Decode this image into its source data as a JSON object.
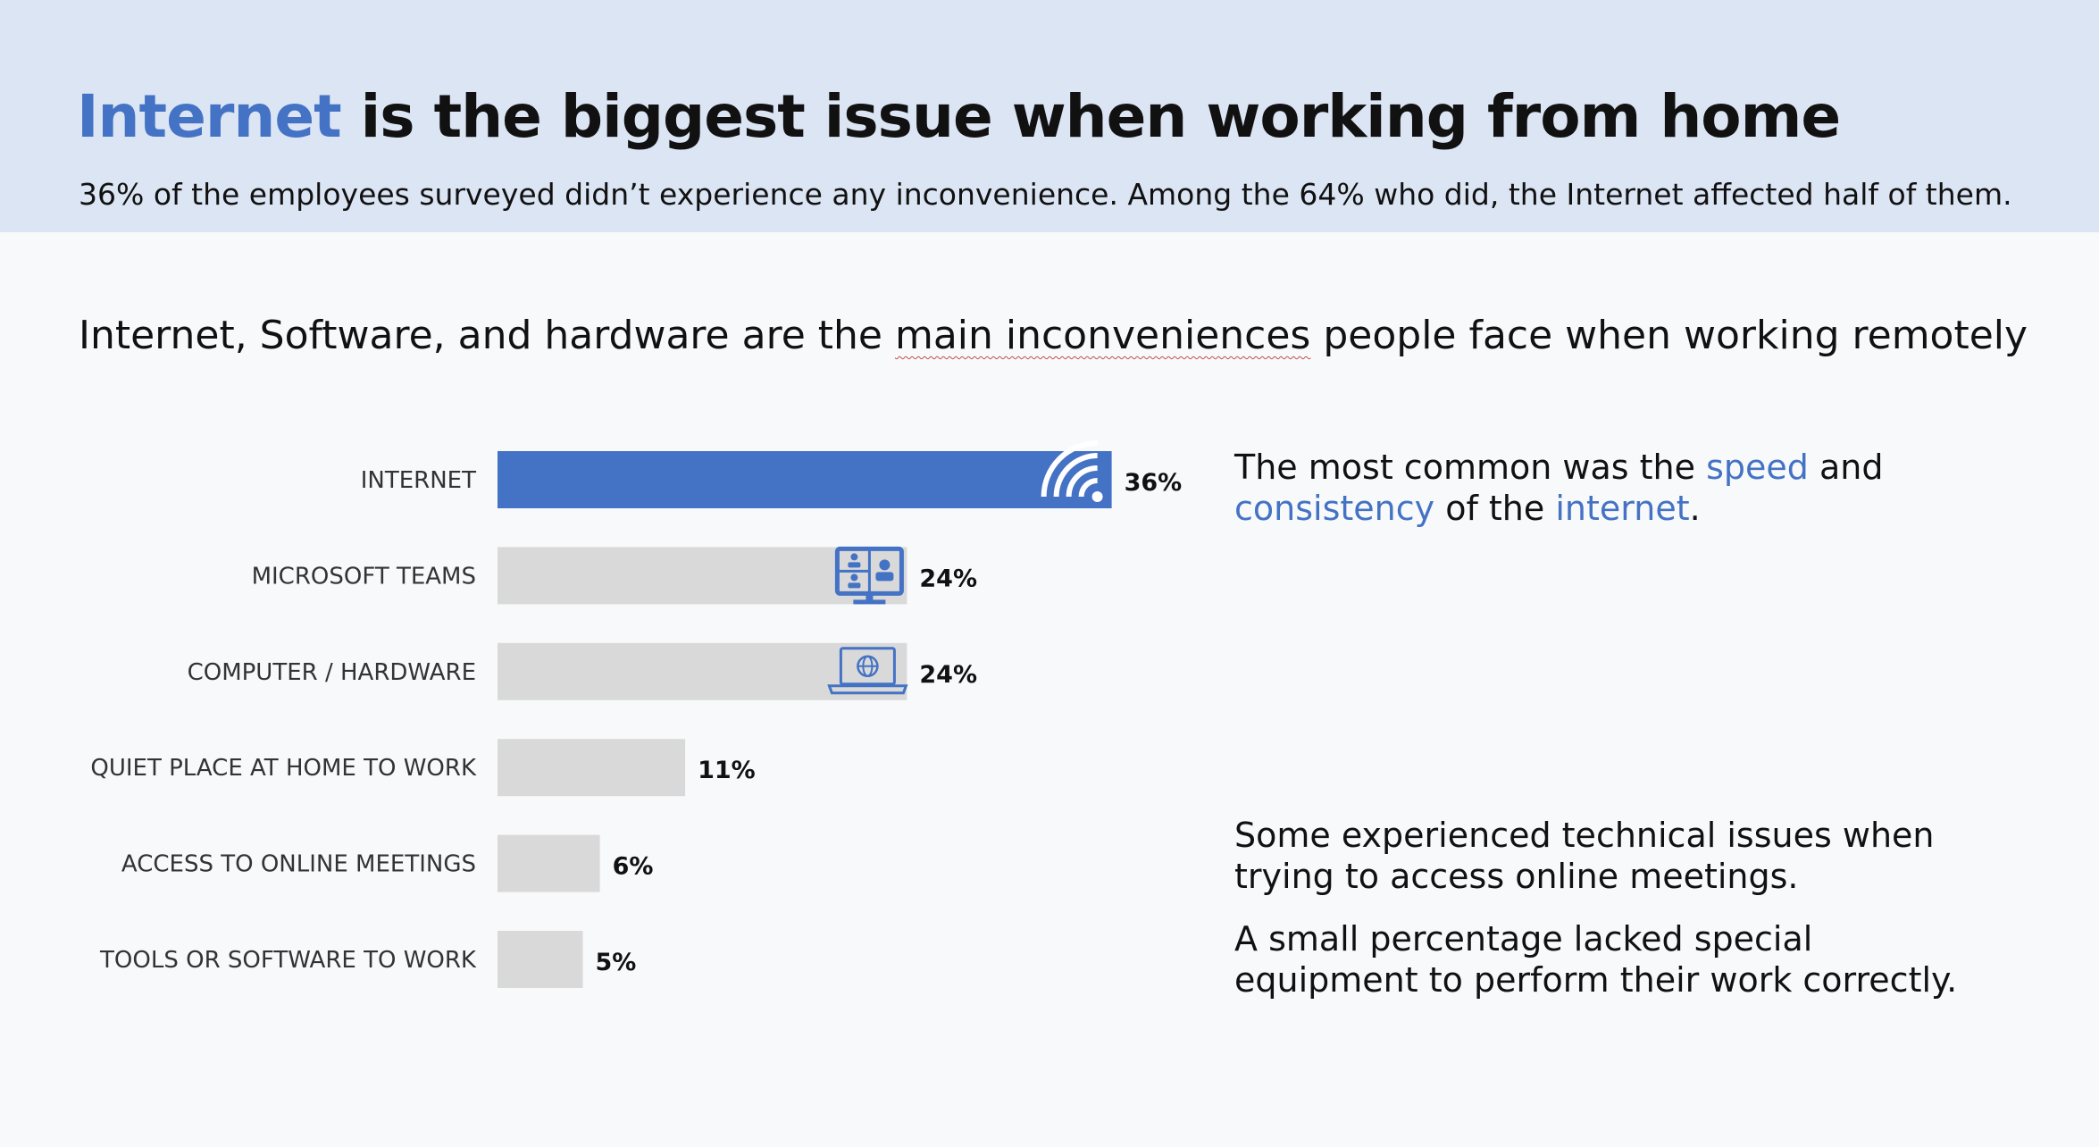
{
  "header": {
    "title_highlight": "Internet",
    "title_rest": " is the biggest issue when working from home",
    "subtitle": "36% of the employees surveyed didn’t experience any inconvenience. Among the 64% who did, the Internet affected half of them."
  },
  "chart_heading": {
    "part1": "Internet, Software, and hardware are the ",
    "underlined": "main inconveniences",
    "part2": " people face when working remotely"
  },
  "colors": {
    "accent": "#4472c4",
    "bar_default": "#d9d9d9",
    "header_bg": "#dce5f4"
  },
  "chart_data": {
    "type": "bar",
    "orientation": "horizontal",
    "categories": [
      "INTERNET",
      "MICROSOFT TEAMS",
      "COMPUTER / HARDWARE",
      "QUIET PLACE AT HOME TO WORK",
      "ACCESS TO ONLINE MEETINGS",
      "TOOLS OR SOFTWARE TO WORK"
    ],
    "values": [
      36,
      24,
      24,
      11,
      6,
      5
    ],
    "value_labels": [
      "36%",
      "24%",
      "24%",
      "11%",
      "6%",
      "5%"
    ],
    "highlighted_category": "INTERNET",
    "bar_icons": [
      "wifi-icon",
      "video-call-icon",
      "laptop-globe-icon",
      "",
      "",
      ""
    ],
    "grid": false,
    "legend": "none"
  },
  "notes": {
    "note1": {
      "t1": "The most common was the ",
      "h1": "speed",
      "t2": " and ",
      "h2": "consistency",
      "t3": " of the ",
      "h3": "internet",
      "t4": "."
    },
    "note2": "Some experienced technical issues when trying to access online meetings.",
    "note3": "A small percentage lacked special equipment to perform their work correctly."
  }
}
